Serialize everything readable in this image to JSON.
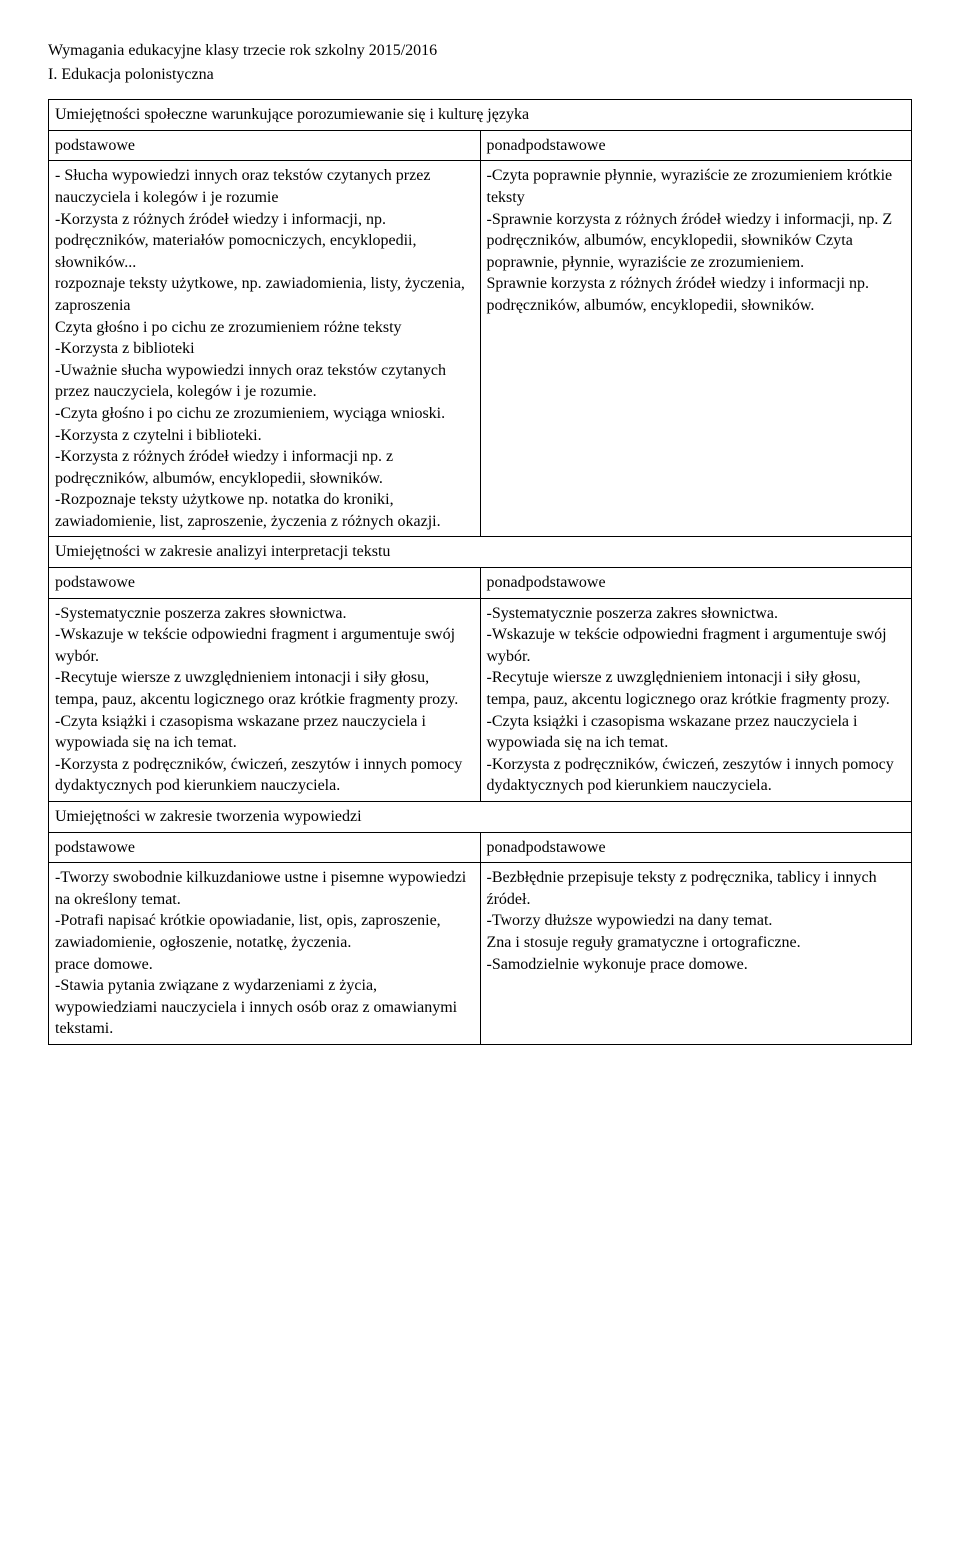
{
  "header": {
    "line1": "Wymagania edukacyjne klasy trzecie rok szkolny 2015/2016",
    "line2": "I. Edukacja polonistyczna"
  },
  "sections": {
    "s1": {
      "title": "Umiejętności społeczne warunkujące porozumiewanie się i kulturę języka",
      "left_label": "podstawowe",
      "right_label": "ponadpodstawowe",
      "left_body": "- Słucha wypowiedzi innych oraz tekstów czytanych przez nauczyciela i kolegów i je rozumie\n-Korzysta z różnych źródeł wiedzy i informacji, np. podręczników, materiałów pomocniczych, encyklopedii, słowników...\nrozpoznaje teksty użytkowe, np. zawiadomienia, listy, życzenia, zaproszenia\nCzyta głośno i po cichu ze zrozumieniem różne teksty\n-Korzysta z biblioteki\n-Uważnie słucha wypowiedzi innych oraz tekstów czytanych przez nauczyciela, kolegów i je rozumie.\n-Czyta głośno i po cichu ze zrozumieniem, wyciąga wnioski.\n-Korzysta z czytelni i biblioteki.\n-Korzysta z różnych źródeł wiedzy i informacji np. z podręczników, albumów, encyklopedii, słowników.\n-Rozpoznaje teksty użytkowe np. notatka do kroniki, zawiadomienie, list, zaproszenie, życzenia z różnych okazji.",
      "right_body": "-Czyta poprawnie płynnie, wyraziście ze zrozumieniem krótkie teksty\n-Sprawnie korzysta z różnych źródeł wiedzy i informacji, np. Z podręczników, albumów, encyklopedii, słowników Czyta poprawnie, płynnie, wyraziście ze zrozumieniem.\nSprawnie korzysta z różnych źródeł wiedzy i informacji np. podręczników, albumów, encyklopedii, słowników."
    },
    "s2": {
      "title": "Umiejętności w zakresie analizyi interpretacji tekstu",
      "left_label": "podstawowe",
      "right_label": "ponadpodstawowe",
      "left_body": "-Systematycznie poszerza zakres słownictwa.\n-Wskazuje w tekście odpowiedni fragment i argumentuje swój wybór.\n-Recytuje wiersze z uwzględnieniem intonacji i siły głosu, tempa, pauz, akcentu logicznego oraz krótkie fragmenty prozy.\n-Czyta książki i czasopisma wskazane przez nauczyciela i wypowiada się na ich temat.\n-Korzysta z podręczników, ćwiczeń, zeszytów i innych pomocy dydaktycznych pod kierunkiem nauczyciela.",
      "right_body": "-Systematycznie poszerza zakres słownictwa.\n-Wskazuje w tekście odpowiedni fragment i argumentuje swój wybór.\n-Recytuje wiersze z uwzględnieniem intonacji i siły głosu, tempa, pauz, akcentu logicznego oraz krótkie fragmenty prozy.\n-Czyta książki i czasopisma wskazane przez nauczyciela i wypowiada się na ich temat.\n-Korzysta z podręczników, ćwiczeń, zeszytów i innych pomocy dydaktycznych pod kierunkiem nauczyciela."
    },
    "s3": {
      "title": "Umiejętności w zakresie tworzenia wypowiedzi",
      "left_label": "podstawowe",
      "right_label": "ponadpodstawowe",
      "left_body": "-Tworzy swobodnie kilkuzdaniowe ustne i pisemne wypowiedzi na określony temat.\n-Potrafi napisać krótkie opowiadanie, list, opis, zaproszenie, zawiadomienie, ogłoszenie, notatkę, życzenia.\nprace domowe.\n-Stawia pytania związane z wydarzeniami z życia, wypowiedziami nauczyciela i innych osób oraz z omawianymi tekstami.",
      "right_body": "-Bezbłędnie przepisuje teksty z podręcznika, tablicy i innych źródeł.\n-Tworzy dłuższe wypowiedzi na dany temat.\nZna i stosuje reguły gramatyczne i ortograficzne.\n-Samodzielnie wykonuje prace domowe."
    }
  }
}
